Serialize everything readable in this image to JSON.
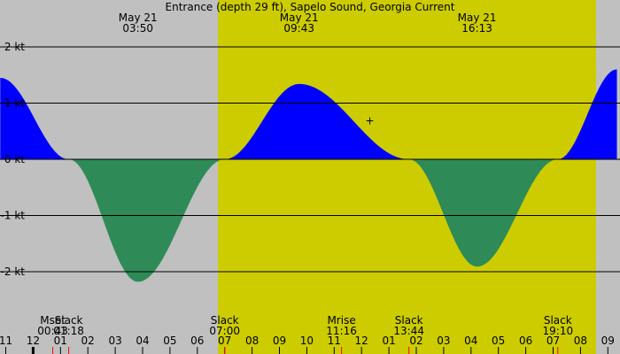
{
  "chart_data": {
    "type": "area",
    "title": "Entrance (depth 29 ft), Sapelo Sound, Georgia Current",
    "y_unit": "kt",
    "ylim": [
      -2.8,
      2.4
    ],
    "y_ticks": [
      {
        "value": 2,
        "label": "2 kt"
      },
      {
        "value": 1,
        "label": "1 kt"
      },
      {
        "value": 0,
        "label": "0 kt"
      },
      {
        "value": -1,
        "label": "-1 kt"
      },
      {
        "value": -2,
        "label": "-2 kt"
      }
    ],
    "x_start_hour": 10.8,
    "x_end_hour": 33.33,
    "x_ticks": [
      {
        "hour": 11,
        "label": "11"
      },
      {
        "hour": 12,
        "label": "12"
      },
      {
        "hour": 13,
        "label": "01"
      },
      {
        "hour": 14,
        "label": "02"
      },
      {
        "hour": 15,
        "label": "03"
      },
      {
        "hour": 16,
        "label": "04"
      },
      {
        "hour": 17,
        "label": "05"
      },
      {
        "hour": 18,
        "label": "06"
      },
      {
        "hour": 19,
        "label": "07"
      },
      {
        "hour": 20,
        "label": "08"
      },
      {
        "hour": 21,
        "label": "09"
      },
      {
        "hour": 22,
        "label": "10"
      },
      {
        "hour": 23,
        "label": "11"
      },
      {
        "hour": 24,
        "label": "12"
      },
      {
        "hour": 25,
        "label": "01"
      },
      {
        "hour": 26,
        "label": "02"
      },
      {
        "hour": 27,
        "label": "03"
      },
      {
        "hour": 28,
        "label": "04"
      },
      {
        "hour": 29,
        "label": "05"
      },
      {
        "hour": 30,
        "label": "06"
      },
      {
        "hour": 31,
        "label": "07"
      },
      {
        "hour": 32,
        "label": "08"
      },
      {
        "hour": 33,
        "label": "09"
      }
    ],
    "daylight": {
      "start_hour": 18.75,
      "end_hour": 32.57
    },
    "top_events": [
      {
        "date": "May 21",
        "time": "03:50",
        "hour": 15.83
      },
      {
        "date": "May 21",
        "time": "09:43",
        "hour": 21.72
      },
      {
        "date": "May 21",
        "time": "16:13",
        "hour": 28.22
      }
    ],
    "bottom_events": [
      {
        "label": "Mset",
        "time": "00:43",
        "hour": 12.72
      },
      {
        "label": "Slack",
        "time": "01:18",
        "hour": 13.3
      },
      {
        "label": "Slack",
        "time": "07:00",
        "hour": 19.0
      },
      {
        "label": "Mrise",
        "time": "11:16",
        "hour": 23.27
      },
      {
        "label": "Slack",
        "time": "13:44",
        "hour": 25.73
      },
      {
        "label": "Slack",
        "time": "19:10",
        "hour": 31.17
      }
    ],
    "red_tick_hours": [
      12.72,
      13.3,
      19.0,
      23.27,
      25.73,
      31.17
    ],
    "black_tick_hour": 12.0,
    "current_points": [
      {
        "hour": 10.8,
        "value": 1.45
      },
      {
        "hour": 13.3,
        "value": 0
      },
      {
        "hour": 15.83,
        "value": -2.18
      },
      {
        "hour": 19.0,
        "value": 0
      },
      {
        "hour": 21.72,
        "value": 1.34
      },
      {
        "hour": 25.73,
        "value": 0
      },
      {
        "hour": 28.22,
        "value": -1.91
      },
      {
        "hour": 31.17,
        "value": 0
      },
      {
        "hour": 33.33,
        "value": 1.6
      }
    ],
    "marker": {
      "hour": 24.3,
      "value": 0.7,
      "symbol": "+"
    },
    "colors": {
      "background": "#c0c0c0",
      "daylight": "#cccc00",
      "flood": "#0000ff",
      "ebb": "#2e8b57",
      "gridline": "#000000",
      "tick_red": "#ff0000",
      "tick_black": "#000000"
    },
    "grid": true
  }
}
